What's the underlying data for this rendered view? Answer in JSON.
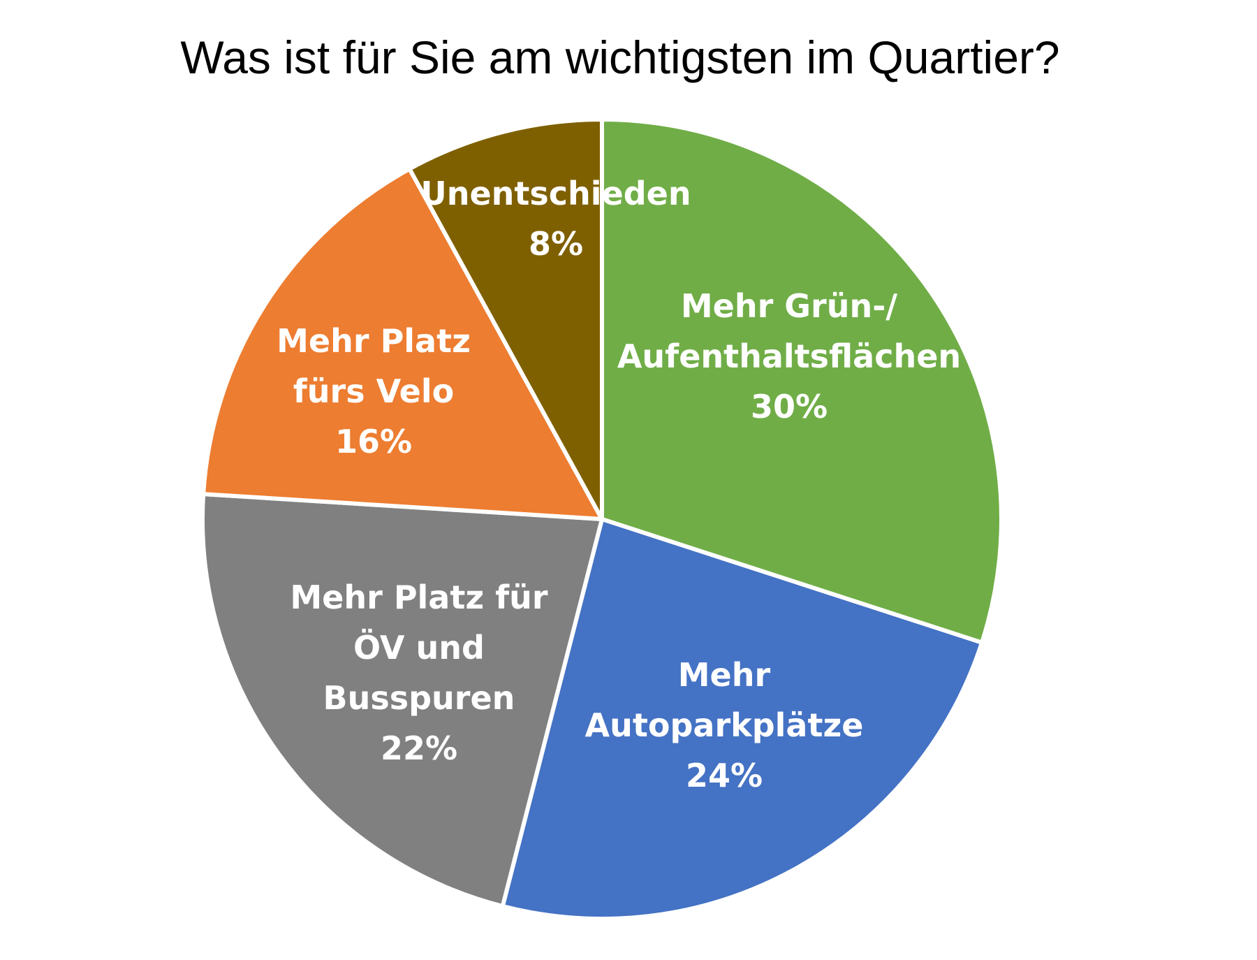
{
  "chart_data": {
    "type": "pie",
    "title": "Was ist für Sie am wichtigsten im Quartier?",
    "slices": [
      {
        "name": "Mehr Grün-/ Aufenthaltsflächen",
        "label_lines": [
          "Mehr Grün-/",
          "Aufenthaltsflächen",
          "30%"
        ],
        "value": 30,
        "color": "#70ad47"
      },
      {
        "name": "Mehr Autoparkplätze",
        "label_lines": [
          "Mehr",
          "Autoparkplätze",
          "24%"
        ],
        "value": 24,
        "color": "#4472c4"
      },
      {
        "name": "Mehr Platz für ÖV und Busspuren",
        "label_lines": [
          "Mehr Platz für",
          "ÖV und",
          "Busspuren",
          "22%"
        ],
        "value": 22,
        "color": "#808080"
      },
      {
        "name": "Mehr Platz fürs Velo",
        "label_lines": [
          "Mehr Platz",
          "fürs Velo",
          "16%"
        ],
        "value": 16,
        "color": "#ed7d31"
      },
      {
        "name": "Unentschieden",
        "label_lines": [
          "Unentschieden",
          "8%"
        ],
        "value": 8,
        "color": "#7f6000"
      }
    ],
    "start_angle": "12 o'clock",
    "direction": "clockwise",
    "legend": "none",
    "data_labels": "inside"
  }
}
